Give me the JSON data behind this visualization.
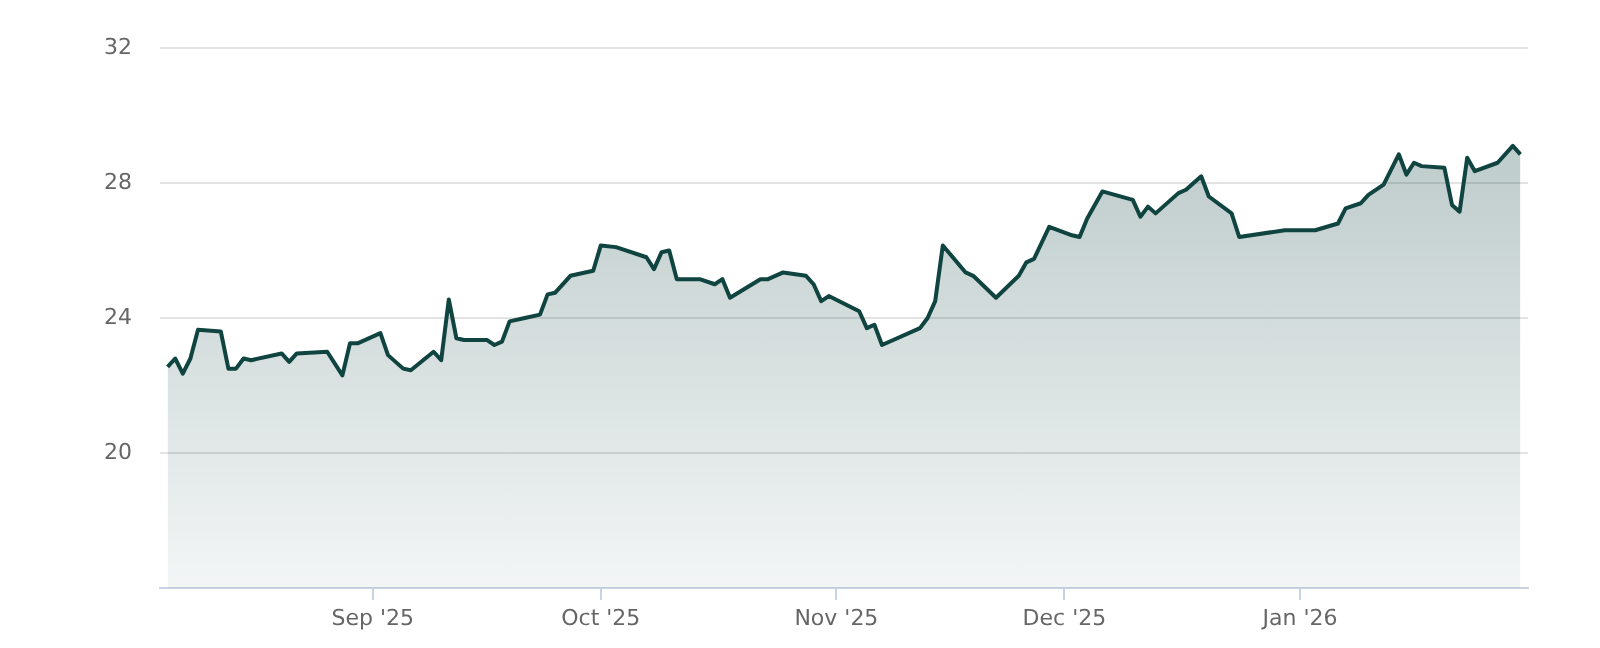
{
  "chart_data": {
    "type": "area",
    "x": [
      "2025-08-05",
      "2025-08-06",
      "2025-08-07",
      "2025-08-08",
      "2025-08-09",
      "2025-08-12",
      "2025-08-13",
      "2025-08-14",
      "2025-08-15",
      "2025-08-16",
      "2025-08-20",
      "2025-08-21",
      "2025-08-22",
      "2025-08-26",
      "2025-08-28",
      "2025-08-29",
      "2025-08-30",
      "2025-09-02",
      "2025-09-03",
      "2025-09-05",
      "2025-09-06",
      "2025-09-09",
      "2025-09-10",
      "2025-09-11",
      "2025-09-12",
      "2025-09-13",
      "2025-09-16",
      "2025-09-17",
      "2025-09-18",
      "2025-09-19",
      "2025-09-21",
      "2025-09-23",
      "2025-09-24",
      "2025-09-25",
      "2025-09-27",
      "2025-09-30",
      "2025-10-01",
      "2025-10-03",
      "2025-10-07",
      "2025-10-08",
      "2025-10-09",
      "2025-10-10",
      "2025-10-11",
      "2025-10-14",
      "2025-10-16",
      "2025-10-17",
      "2025-10-18",
      "2025-10-22",
      "2025-10-23",
      "2025-10-25",
      "2025-10-28",
      "2025-10-29",
      "2025-10-30",
      "2025-10-31",
      "2025-11-04",
      "2025-11-05",
      "2025-11-06",
      "2025-11-07",
      "2025-11-12",
      "2025-11-13",
      "2025-11-14",
      "2025-11-15",
      "2025-11-18",
      "2025-11-19",
      "2025-11-22",
      "2025-11-25",
      "2025-11-26",
      "2025-11-27",
      "2025-11-29",
      "2025-12-02",
      "2025-12-03",
      "2025-12-04",
      "2025-12-06",
      "2025-12-10",
      "2025-12-11",
      "2025-12-12",
      "2025-12-13",
      "2025-12-16",
      "2025-12-17",
      "2025-12-19",
      "2025-12-20",
      "2025-12-23",
      "2025-12-24",
      "2025-12-30",
      "2026-01-03",
      "2026-01-06",
      "2026-01-07",
      "2026-01-09",
      "2026-01-10",
      "2026-01-12",
      "2026-01-14",
      "2026-01-15",
      "2026-01-16",
      "2026-01-17",
      "2026-01-20",
      "2026-01-21",
      "2026-01-22",
      "2026-01-23",
      "2026-01-24",
      "2026-01-27",
      "2026-01-29",
      "2026-01-30"
    ],
    "series": [
      {
        "color": "#0f4440",
        "values": [
          22.55,
          22.8,
          22.35,
          22.8,
          23.65,
          23.6,
          22.5,
          22.5,
          22.8,
          22.75,
          22.95,
          22.7,
          22.95,
          23.0,
          22.3,
          23.25,
          23.25,
          23.55,
          22.9,
          22.5,
          22.45,
          23.0,
          22.75,
          24.55,
          23.4,
          23.35,
          23.35,
          23.2,
          23.3,
          23.9,
          24.0,
          24.1,
          24.7,
          24.75,
          25.25,
          25.4,
          26.15,
          26.1,
          25.8,
          25.45,
          25.95,
          26.0,
          25.15,
          25.15,
          25.0,
          25.15,
          24.6,
          25.15,
          25.15,
          25.35,
          25.25,
          25.0,
          24.5,
          24.65,
          24.2,
          23.7,
          23.8,
          23.2,
          23.7,
          24.0,
          24.5,
          26.15,
          25.35,
          25.25,
          24.6,
          25.25,
          25.65,
          25.75,
          26.7,
          26.45,
          26.4,
          26.95,
          27.75,
          27.5,
          27.0,
          27.3,
          27.1,
          27.7,
          27.8,
          28.2,
          27.6,
          27.1,
          26.4,
          26.6,
          26.6,
          26.8,
          27.25,
          27.4,
          27.65,
          27.95,
          28.85,
          28.25,
          28.6,
          28.5,
          28.45,
          27.35,
          27.15,
          28.75,
          28.35,
          28.6,
          29.1,
          28.85
        ]
      }
    ],
    "xlim": [
      "2025-08-04",
      "2026-01-31"
    ],
    "xticks": [
      {
        "value": "2025-09-01",
        "label": "Sep '25"
      },
      {
        "value": "2025-10-01",
        "label": "Oct '25"
      },
      {
        "value": "2025-11-01",
        "label": "Nov '25"
      },
      {
        "value": "2025-12-01",
        "label": "Dec '25"
      },
      {
        "value": "2026-01-01",
        "label": "Jan '26"
      }
    ],
    "ylim": [
      16,
      32
    ],
    "yticks": [
      20,
      24,
      28,
      32
    ],
    "grid": "y",
    "legend": false,
    "marker": "none",
    "line_style": "solid"
  }
}
